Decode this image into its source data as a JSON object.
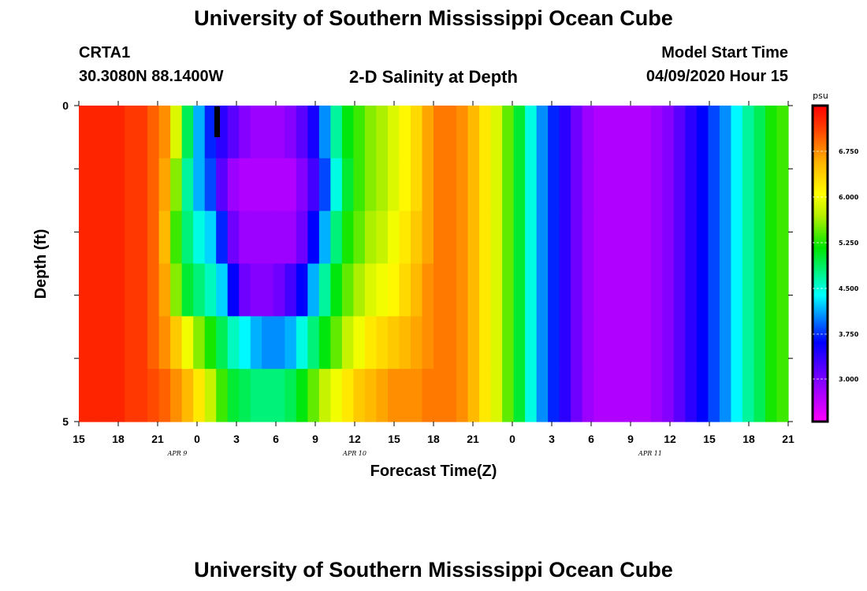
{
  "header": {
    "title_top": "University of Southern Mississippi Ocean Cube",
    "title_bottom": "University of Southern Mississippi Ocean Cube",
    "station": "CRTA1",
    "coords": "30.3080N 88.1400W",
    "model_start_label": "Model Start Time",
    "model_start_value": "04/09/2020 Hour 15"
  },
  "chart_data": {
    "type": "heatmap",
    "title": "2-D Salinity at Depth",
    "xlabel": "Forecast Time(Z)",
    "ylabel": "Depth (ft)",
    "y_ticks": [
      "0",
      "5"
    ],
    "ylim": [
      0,
      5
    ],
    "x_ticks": [
      "15",
      "18",
      "21",
      "0",
      "3",
      "6",
      "9",
      "12",
      "15",
      "18",
      "21",
      "0",
      "3",
      "6",
      "9",
      "12",
      "15",
      "18",
      "21"
    ],
    "date_labels": [
      "APR 9",
      "APR 10",
      "APR 11"
    ],
    "colorbar": {
      "unit": "psu",
      "ticks": [
        "6.750",
        "6.000",
        "5.250",
        "4.500",
        "3.750",
        "3.000"
      ],
      "range": [
        2.6,
        7.4
      ]
    },
    "x_hours_range": [
      0,
      54
    ],
    "surface_rows": [
      {
        "row": 0,
        "values": [
          7.2,
          7.2,
          7.2,
          7.2,
          7.1,
          7.1,
          6.9,
          6.7,
          5.9,
          5.0,
          4.3,
          3.9,
          3.6,
          3.4,
          3.2,
          3.1,
          3.1,
          3.1,
          3.2,
          3.4,
          3.7,
          4.2,
          4.8,
          5.2,
          5.4,
          5.6,
          5.7,
          5.9,
          6.1,
          6.3,
          6.6,
          6.8,
          6.8,
          6.7,
          6.5,
          6.2,
          5.9,
          5.5,
          5.1,
          4.6,
          4.2,
          3.9,
          3.6,
          3.3,
          3.1,
          3.0,
          3.0,
          3.0,
          3.0,
          3.0,
          3.1,
          3.2,
          3.4,
          3.6,
          3.8,
          4.0,
          4.2,
          4.5,
          4.8,
          5.0,
          5.3,
          5.4
        ]
      },
      {
        "row": 1,
        "values": [
          7.2,
          7.2,
          7.2,
          7.2,
          7.1,
          7.1,
          6.9,
          6.6,
          5.6,
          4.8,
          4.3,
          4.0,
          3.4,
          3.1,
          3.0,
          3.0,
          3.0,
          3.0,
          3.0,
          3.2,
          3.5,
          4.0,
          4.6,
          5.1,
          5.4,
          5.6,
          5.7,
          5.9,
          6.1,
          6.3,
          6.6,
          6.8,
          6.8,
          6.7,
          6.5,
          6.2,
          5.9,
          5.5,
          5.1,
          4.6,
          4.2,
          3.9,
          3.6,
          3.3,
          3.1,
          3.0,
          3.0,
          3.0,
          3.0,
          3.0,
          3.1,
          3.2,
          3.4,
          3.6,
          3.8,
          4.0,
          4.2,
          4.5,
          4.8,
          5.0,
          5.3,
          5.4
        ]
      },
      {
        "row": 2,
        "values": [
          7.2,
          7.2,
          7.2,
          7.2,
          7.1,
          7.1,
          6.9,
          6.5,
          5.4,
          4.9,
          4.6,
          4.4,
          3.9,
          3.3,
          3.1,
          3.1,
          3.1,
          3.1,
          3.1,
          3.3,
          3.8,
          4.3,
          4.9,
          5.3,
          5.5,
          5.7,
          5.8,
          6.0,
          6.2,
          6.4,
          6.6,
          6.8,
          6.8,
          6.7,
          6.5,
          6.2,
          5.9,
          5.5,
          5.1,
          4.6,
          4.2,
          3.9,
          3.6,
          3.3,
          3.1,
          3.0,
          3.0,
          3.0,
          3.0,
          3.0,
          3.1,
          3.2,
          3.4,
          3.6,
          3.8,
          4.0,
          4.2,
          4.5,
          4.8,
          5.0,
          5.3,
          5.4
        ]
      },
      {
        "row": 3,
        "values": [
          7.2,
          7.2,
          7.2,
          7.2,
          7.1,
          7.1,
          6.9,
          6.6,
          5.6,
          5.1,
          4.9,
          4.7,
          4.4,
          3.8,
          3.3,
          3.2,
          3.2,
          3.3,
          3.5,
          3.8,
          4.3,
          4.8,
          5.2,
          5.5,
          5.7,
          5.9,
          6.0,
          6.1,
          6.3,
          6.5,
          6.7,
          6.8,
          6.8,
          6.7,
          6.5,
          6.2,
          5.9,
          5.5,
          5.1,
          4.6,
          4.2,
          3.9,
          3.6,
          3.3,
          3.1,
          3.0,
          3.0,
          3.0,
          3.0,
          3.0,
          3.1,
          3.2,
          3.4,
          3.6,
          3.8,
          4.0,
          4.2,
          4.5,
          4.8,
          5.0,
          5.3,
          5.4
        ]
      },
      {
        "row": 4,
        "values": [
          7.2,
          7.2,
          7.2,
          7.2,
          7.1,
          7.1,
          6.9,
          6.7,
          6.4,
          6.0,
          5.6,
          5.3,
          5.0,
          4.7,
          4.5,
          4.3,
          4.2,
          4.2,
          4.3,
          4.6,
          4.9,
          5.2,
          5.5,
          5.8,
          6.0,
          6.2,
          6.3,
          6.4,
          6.5,
          6.6,
          6.7,
          6.8,
          6.8,
          6.7,
          6.5,
          6.2,
          5.9,
          5.5,
          5.1,
          4.6,
          4.2,
          3.9,
          3.6,
          3.3,
          3.1,
          3.0,
          3.0,
          3.0,
          3.0,
          3.0,
          3.1,
          3.2,
          3.4,
          3.6,
          3.8,
          4.0,
          4.2,
          4.5,
          4.8,
          5.0,
          5.3,
          5.4
        ]
      },
      {
        "row": 5,
        "values": [
          7.2,
          7.2,
          7.2,
          7.2,
          7.1,
          7.1,
          7.0,
          6.9,
          6.7,
          6.5,
          6.2,
          5.8,
          5.4,
          5.1,
          5.0,
          4.9,
          4.9,
          4.9,
          5.0,
          5.2,
          5.5,
          5.8,
          6.0,
          6.2,
          6.4,
          6.5,
          6.6,
          6.7,
          6.7,
          6.7,
          6.8,
          6.8,
          6.8,
          6.7,
          6.5,
          6.2,
          5.9,
          5.5,
          5.1,
          4.6,
          4.2,
          3.9,
          3.6,
          3.3,
          3.1,
          3.0,
          3.0,
          3.0,
          3.0,
          3.0,
          3.1,
          3.2,
          3.4,
          3.6,
          3.8,
          4.0,
          4.2,
          4.5,
          4.8,
          5.0,
          5.3,
          5.4
        ]
      }
    ]
  }
}
